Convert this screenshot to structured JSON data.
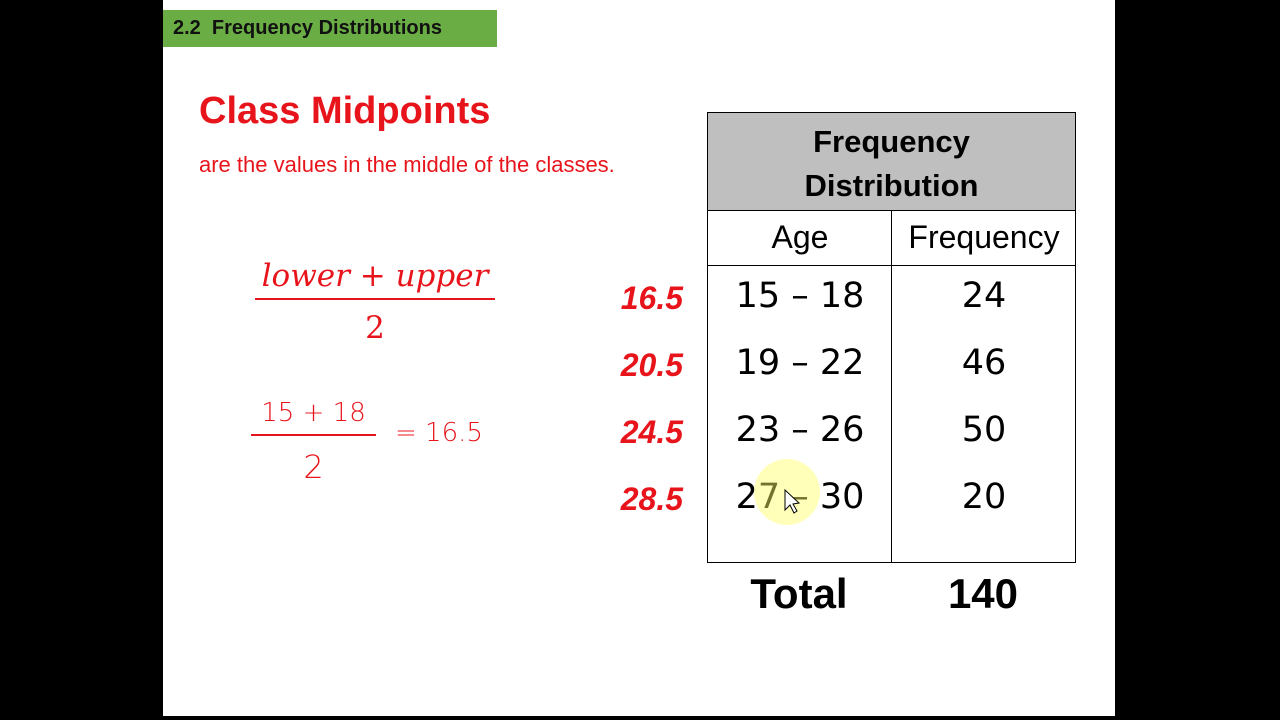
{
  "header": {
    "badge": "2.2  Frequency Distributions"
  },
  "slide": {
    "title": "Class Midpoints",
    "subtitle": "are the values in the middle of the classes.",
    "formula": {
      "numerator": "lower + upper",
      "denominator": "2"
    },
    "handwritten": {
      "numerator": "15 + 18",
      "denominator": "2",
      "result": "= 16.5"
    },
    "midpoints": [
      "16.5",
      "20.5",
      "24.5",
      "28.5"
    ]
  },
  "table": {
    "title": "Frequency Distribution",
    "columns": [
      "Age",
      "Frequency"
    ],
    "rows": [
      [
        "15 – 18",
        "24"
      ],
      [
        "19 – 22",
        "46"
      ],
      [
        "23 – 26",
        "50"
      ],
      [
        "27 – 30",
        "20"
      ]
    ],
    "total": [
      "Total",
      "140"
    ]
  }
}
